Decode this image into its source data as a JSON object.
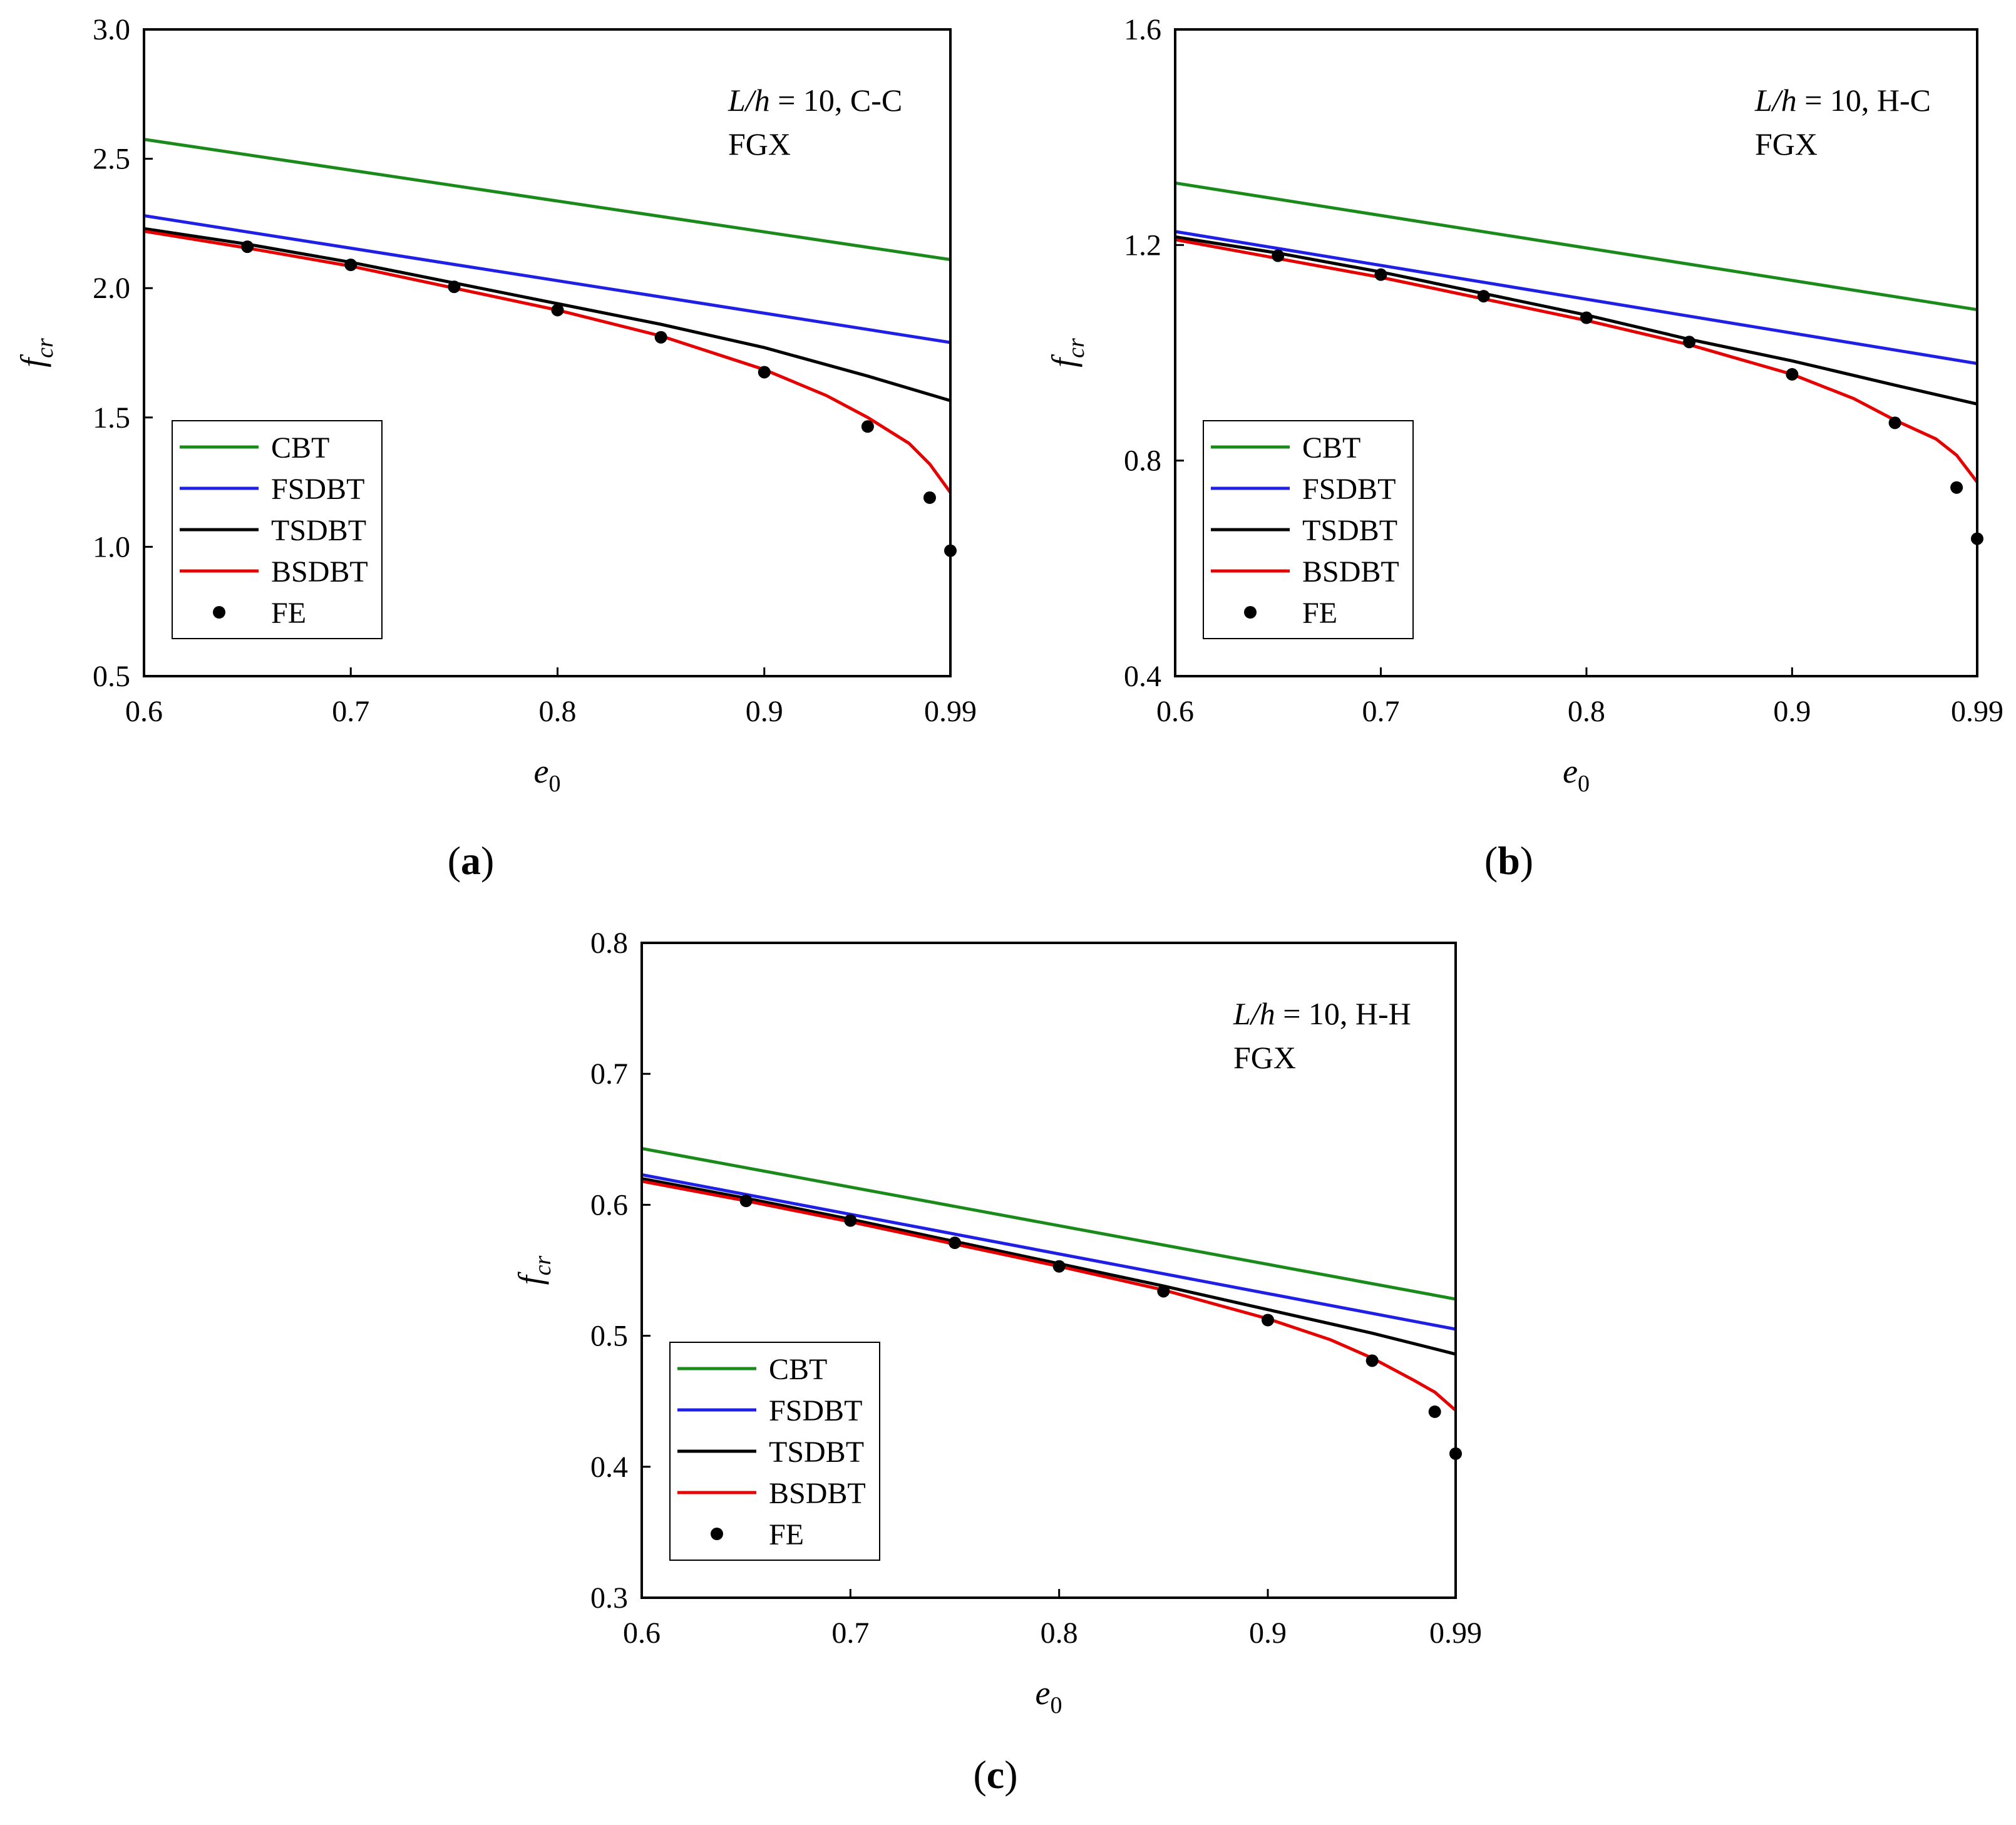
{
  "figure": {
    "captions": [
      "a",
      "b",
      "c"
    ]
  },
  "chart_data": [
    {
      "panel": "a",
      "type": "line",
      "xlabel": "e",
      "xlabel_sub": "0",
      "ylabel": "f",
      "ylabel_sub": "cr",
      "xlim": [
        0.6,
        0.99
      ],
      "ylim": [
        0.5,
        3.0
      ],
      "xticks": [
        0.6,
        0.7,
        0.8,
        0.9,
        0.99
      ],
      "xtick_labels": [
        "0.6",
        "0.7",
        "0.8",
        "0.9",
        "0.99"
      ],
      "yticks": [
        0.5,
        1.0,
        1.5,
        2.0,
        2.5,
        3.0
      ],
      "ytick_labels": [
        "0.5",
        "1.0",
        "1.5",
        "2.0",
        "2.5",
        "3.0"
      ],
      "annotation": {
        "italic_part": "L/h",
        "rest": " = 10, C-C",
        "line2": "FGX"
      },
      "legend_position": "lower-left",
      "series": [
        {
          "name": "CBT",
          "color": "#1a8a1a",
          "kind": "line",
          "x": [
            0.6,
            0.99
          ],
          "y": [
            2.575,
            2.11
          ]
        },
        {
          "name": "FSDBT",
          "color": "#1f1fe6",
          "kind": "line",
          "x": [
            0.6,
            0.99
          ],
          "y": [
            2.28,
            1.79
          ]
        },
        {
          "name": "TSDBT",
          "color": "#000000",
          "kind": "line",
          "x": [
            0.6,
            0.65,
            0.7,
            0.75,
            0.8,
            0.85,
            0.9,
            0.95,
            0.99
          ],
          "y": [
            2.23,
            2.17,
            2.1,
            2.02,
            1.94,
            1.86,
            1.77,
            1.66,
            1.565
          ]
        },
        {
          "name": "BSDBT",
          "color": "#e60000",
          "kind": "line",
          "x": [
            0.6,
            0.65,
            0.7,
            0.75,
            0.8,
            0.85,
            0.9,
            0.93,
            0.95,
            0.97,
            0.98,
            0.99
          ],
          "y": [
            2.22,
            2.155,
            2.085,
            2.0,
            1.915,
            1.815,
            1.685,
            1.585,
            1.5,
            1.4,
            1.32,
            1.21
          ]
        },
        {
          "name": "FE",
          "color": "#000000",
          "kind": "scatter",
          "x": [
            0.65,
            0.7,
            0.75,
            0.8,
            0.85,
            0.9,
            0.95,
            0.98,
            0.99
          ],
          "y": [
            2.16,
            2.09,
            2.005,
            1.915,
            1.81,
            1.675,
            1.465,
            1.19,
            0.985
          ]
        }
      ]
    },
    {
      "panel": "b",
      "type": "line",
      "xlabel": "e",
      "xlabel_sub": "0",
      "ylabel": "f",
      "ylabel_sub": "cr",
      "xlim": [
        0.6,
        0.99
      ],
      "ylim": [
        0.4,
        1.6
      ],
      "xticks": [
        0.6,
        0.7,
        0.8,
        0.9,
        0.99
      ],
      "xtick_labels": [
        "0.6",
        "0.7",
        "0.8",
        "0.9",
        "0.99"
      ],
      "yticks": [
        0.4,
        0.8,
        1.2,
        1.6
      ],
      "ytick_labels": [
        "0.4",
        "0.8",
        "1.2",
        "1.6"
      ],
      "annotation": {
        "italic_part": "L/h",
        "rest": " = 10, H-C",
        "line2": "FGX"
      },
      "legend_position": "lower-left",
      "series": [
        {
          "name": "CBT",
          "color": "#1a8a1a",
          "kind": "line",
          "x": [
            0.6,
            0.99
          ],
          "y": [
            1.315,
            1.08
          ]
        },
        {
          "name": "FSDBT",
          "color": "#1f1fe6",
          "kind": "line",
          "x": [
            0.6,
            0.99
          ],
          "y": [
            1.225,
            0.98
          ]
        },
        {
          "name": "TSDBT",
          "color": "#000000",
          "kind": "line",
          "x": [
            0.6,
            0.65,
            0.7,
            0.75,
            0.8,
            0.85,
            0.9,
            0.95,
            0.99
          ],
          "y": [
            1.215,
            1.185,
            1.15,
            1.11,
            1.07,
            1.025,
            0.985,
            0.94,
            0.905
          ]
        },
        {
          "name": "BSDBT",
          "color": "#e60000",
          "kind": "line",
          "x": [
            0.6,
            0.65,
            0.7,
            0.75,
            0.8,
            0.85,
            0.9,
            0.93,
            0.95,
            0.97,
            0.98,
            0.99
          ],
          "y": [
            1.21,
            1.175,
            1.14,
            1.1,
            1.06,
            1.015,
            0.96,
            0.915,
            0.875,
            0.84,
            0.81,
            0.76
          ]
        },
        {
          "name": "FE",
          "color": "#000000",
          "kind": "scatter",
          "x": [
            0.65,
            0.7,
            0.75,
            0.8,
            0.85,
            0.9,
            0.95,
            0.98,
            0.99
          ],
          "y": [
            1.18,
            1.145,
            1.105,
            1.065,
            1.02,
            0.96,
            0.87,
            0.75,
            0.655
          ]
        }
      ]
    },
    {
      "panel": "c",
      "type": "line",
      "xlabel": "e",
      "xlabel_sub": "0",
      "ylabel": "f",
      "ylabel_sub": "cr",
      "xlim": [
        0.6,
        0.99
      ],
      "ylim": [
        0.3,
        0.8
      ],
      "xticks": [
        0.6,
        0.7,
        0.8,
        0.9,
        0.99
      ],
      "xtick_labels": [
        "0.6",
        "0.7",
        "0.8",
        "0.9",
        "0.99"
      ],
      "yticks": [
        0.3,
        0.4,
        0.5,
        0.6,
        0.7,
        0.8
      ],
      "ytick_labels": [
        "0.3",
        "0.4",
        "0.5",
        "0.6",
        "0.7",
        "0.8"
      ],
      "annotation": {
        "italic_part": "L/h",
        "rest": " = 10, H-H",
        "line2": "FGX"
      },
      "legend_position": "lower-left",
      "series": [
        {
          "name": "CBT",
          "color": "#1a8a1a",
          "kind": "line",
          "x": [
            0.6,
            0.99
          ],
          "y": [
            0.643,
            0.528
          ]
        },
        {
          "name": "FSDBT",
          "color": "#1f1fe6",
          "kind": "line",
          "x": [
            0.6,
            0.99
          ],
          "y": [
            0.623,
            0.505
          ]
        },
        {
          "name": "TSDBT",
          "color": "#000000",
          "kind": "line",
          "x": [
            0.6,
            0.65,
            0.7,
            0.75,
            0.8,
            0.85,
            0.9,
            0.95,
            0.99
          ],
          "y": [
            0.62,
            0.605,
            0.589,
            0.572,
            0.555,
            0.538,
            0.52,
            0.502,
            0.486
          ]
        },
        {
          "name": "BSDBT",
          "color": "#e60000",
          "kind": "line",
          "x": [
            0.6,
            0.65,
            0.7,
            0.75,
            0.8,
            0.85,
            0.9,
            0.93,
            0.95,
            0.97,
            0.98,
            0.99
          ],
          "y": [
            0.618,
            0.603,
            0.587,
            0.57,
            0.553,
            0.535,
            0.513,
            0.497,
            0.483,
            0.466,
            0.457,
            0.443
          ]
        },
        {
          "name": "FE",
          "color": "#000000",
          "kind": "scatter",
          "x": [
            0.65,
            0.7,
            0.75,
            0.8,
            0.85,
            0.9,
            0.95,
            0.98,
            0.99
          ],
          "y": [
            0.603,
            0.588,
            0.571,
            0.553,
            0.534,
            0.512,
            0.481,
            0.442,
            0.41
          ]
        }
      ]
    }
  ]
}
